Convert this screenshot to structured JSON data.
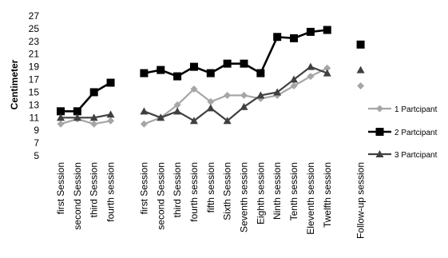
{
  "chart_data": {
    "type": "line",
    "title": "",
    "xlabel": "",
    "ylabel": "Centimeter",
    "ylim": [
      5,
      27
    ],
    "yticks": [
      5,
      7,
      9,
      11,
      13,
      15,
      17,
      19,
      21,
      23,
      25,
      27
    ],
    "grid": false,
    "legend_position": "right",
    "categories": [
      "first Session",
      "second Session",
      "third Session",
      "fourth session",
      "first Session",
      "second Session",
      "third Session",
      "fourth session",
      "fifth session",
      "Sixth Session",
      "Seventh session",
      "Eighth session",
      "Ninth session",
      "Tenth session",
      "Eleventh session",
      "Twelfth session",
      "Follow-up session"
    ],
    "segments": [
      [
        0,
        3
      ],
      [
        4,
        15
      ],
      [
        16,
        16
      ]
    ],
    "series": [
      {
        "name": "1 Partcipant",
        "color": "#a6a6a6",
        "marker": "diamond",
        "values": [
          10,
          10.8,
          10,
          10.5,
          10,
          11,
          13,
          15.5,
          13.5,
          14.5,
          14.5,
          14,
          14.5,
          16,
          17.5,
          18.8,
          16
        ]
      },
      {
        "name": "2 Partcipant",
        "color": "#000000",
        "marker": "square",
        "values": [
          12,
          12,
          15,
          16.5,
          18,
          18.5,
          17.5,
          19,
          18,
          19.5,
          19.5,
          18,
          23.7,
          23.5,
          24.5,
          24.8,
          22.5
        ]
      },
      {
        "name": "3 Partcipant",
        "color": "#404040",
        "marker": "triangle",
        "values": [
          11,
          11,
          11,
          11.5,
          12,
          11,
          12,
          10.5,
          12.5,
          10.5,
          12.7,
          14.5,
          15,
          17,
          19,
          18,
          18.5
        ]
      }
    ]
  }
}
